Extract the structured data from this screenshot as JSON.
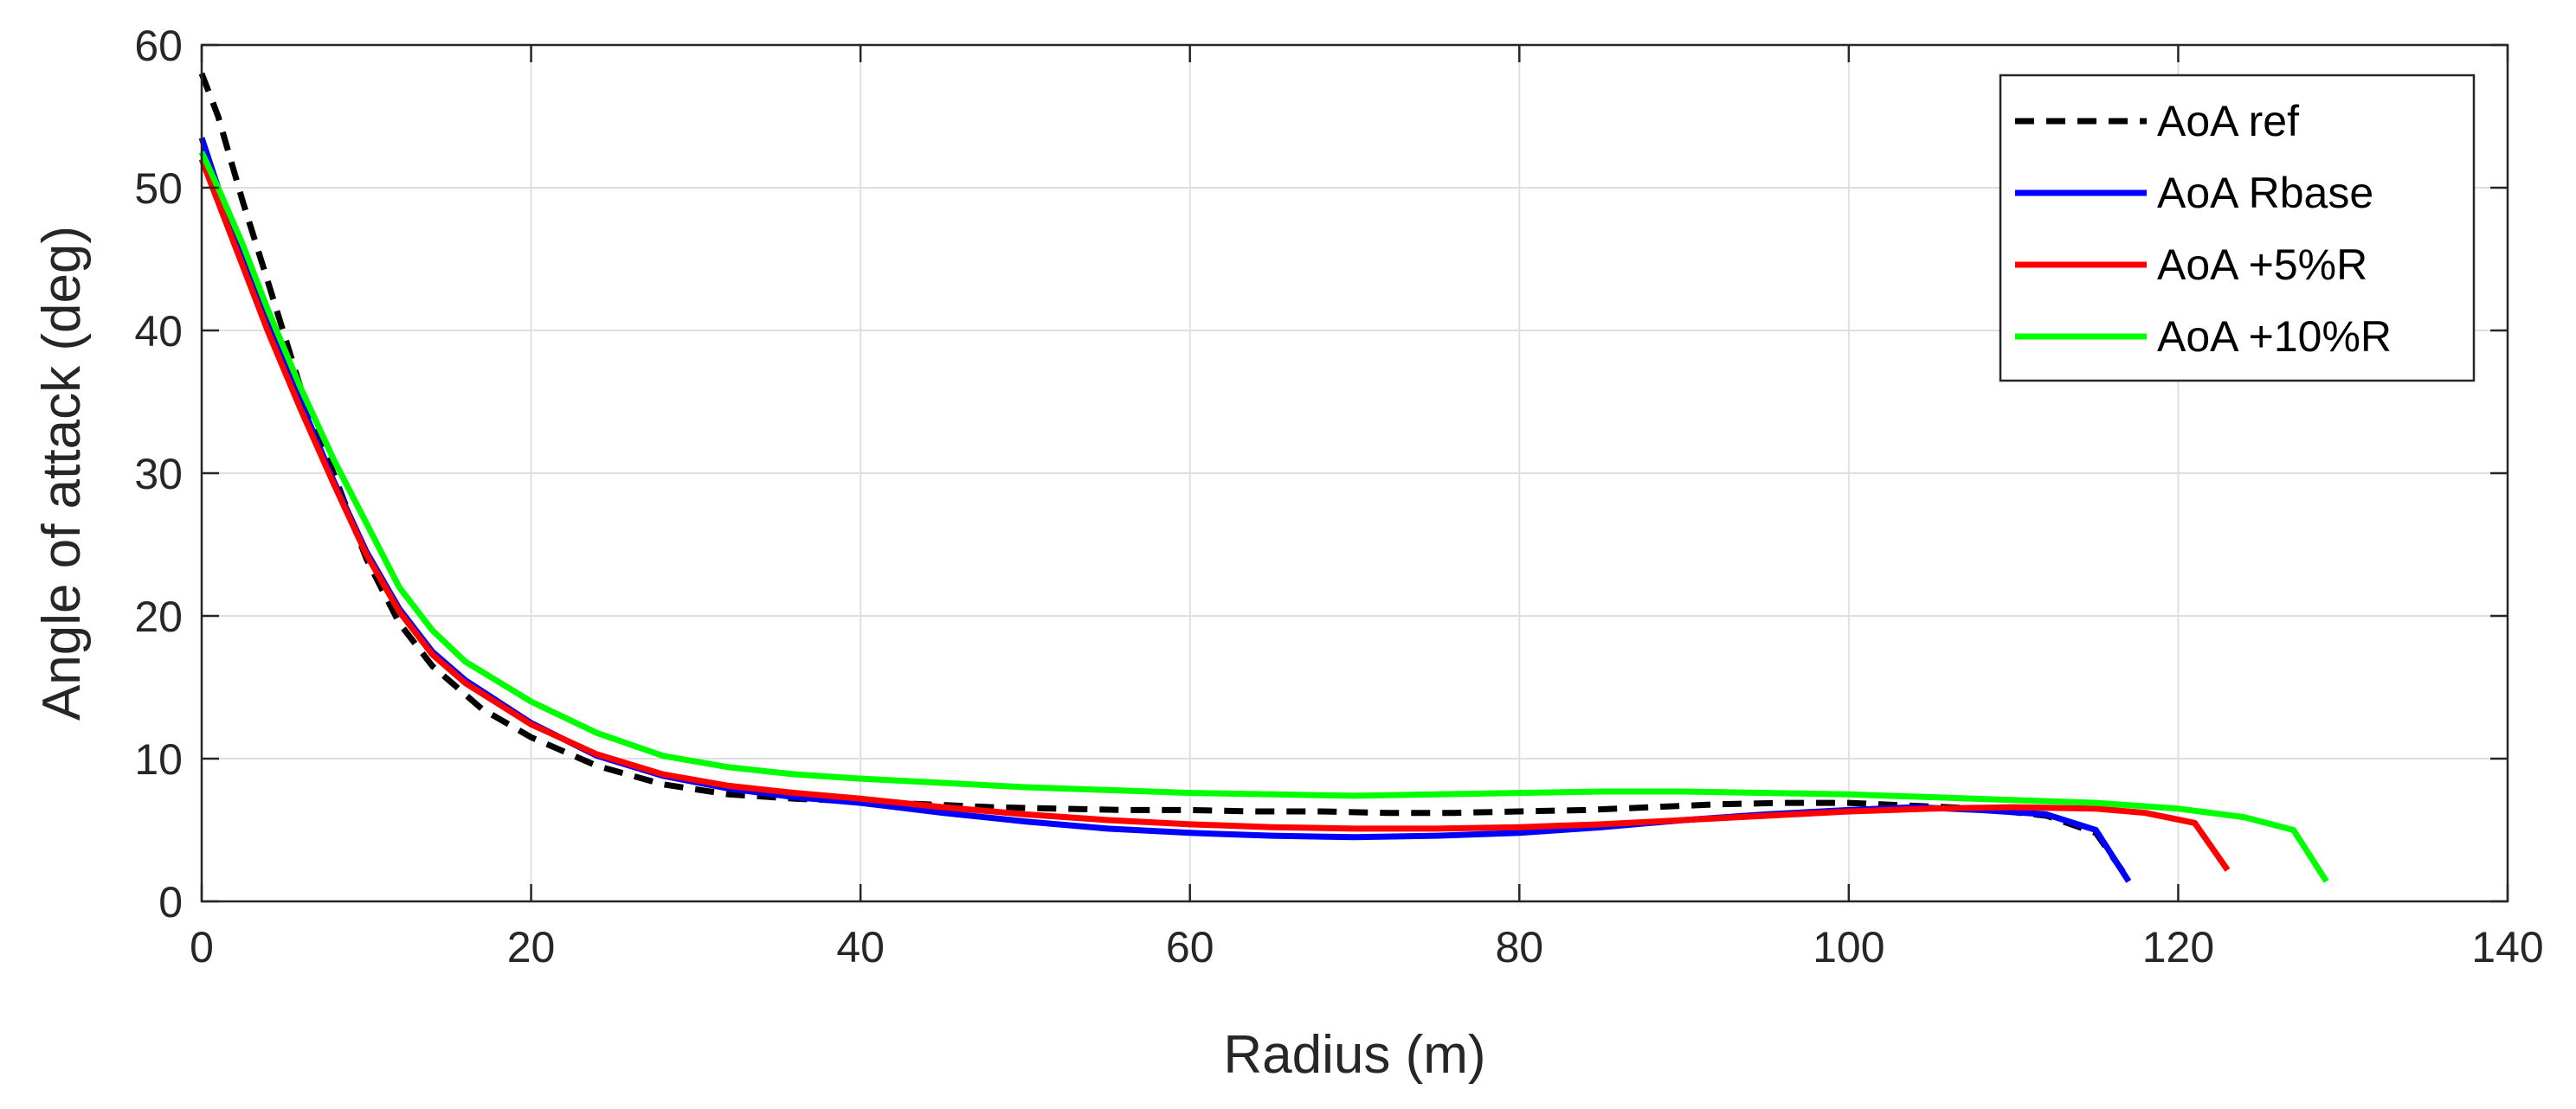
{
  "chart_data": {
    "type": "line",
    "title": "",
    "xlabel": "Radius (m)",
    "ylabel": "Angle of attack (deg)",
    "xlim": [
      0,
      140
    ],
    "ylim": [
      0,
      60
    ],
    "xticks": [
      0,
      20,
      40,
      60,
      80,
      100,
      120,
      140
    ],
    "yticks": [
      0,
      10,
      20,
      30,
      40,
      50,
      60
    ],
    "grid": true,
    "legend_position": "top-right",
    "series": [
      {
        "name": "AoA ref",
        "color": "#000000",
        "dash": "dashed",
        "x": [
          0,
          1,
          2.5,
          4,
          6,
          8,
          10,
          12,
          14,
          17,
          20,
          24,
          28,
          32,
          36,
          40,
          44,
          48,
          52,
          56,
          60,
          64,
          68,
          72,
          76,
          80,
          84,
          88,
          92,
          96,
          100,
          104,
          108,
          112,
          115,
          117
        ],
        "y": [
          58,
          55,
          49,
          43.5,
          36,
          30,
          24,
          19.5,
          16.5,
          13.5,
          11.5,
          9.5,
          8.2,
          7.5,
          7.2,
          7,
          6.8,
          6.6,
          6.5,
          6.4,
          6.4,
          6.3,
          6.3,
          6.2,
          6.2,
          6.3,
          6.4,
          6.6,
          6.8,
          6.9,
          6.9,
          6.7,
          6.5,
          6,
          4.8,
          1.5
        ]
      },
      {
        "name": "AoA Rbase",
        "color": "#0000ff",
        "dash": "solid",
        "x": [
          0,
          1,
          2.5,
          4,
          6,
          8,
          10,
          12,
          14,
          16,
          20,
          24,
          28,
          32,
          36,
          40,
          45,
          50,
          55,
          60,
          65,
          70,
          75,
          80,
          85,
          90,
          95,
          100,
          104,
          108,
          112,
          115,
          117
        ],
        "y": [
          53.5,
          50,
          45,
          40.5,
          35,
          29.5,
          24.5,
          20.5,
          17.5,
          15.5,
          12.5,
          10.2,
          8.8,
          7.9,
          7.3,
          6.9,
          6.2,
          5.6,
          5.1,
          4.8,
          4.6,
          4.5,
          4.6,
          4.8,
          5.2,
          5.7,
          6.1,
          6.4,
          6.6,
          6.4,
          6.1,
          5,
          1.4
        ]
      },
      {
        "name": "AoA +5%R",
        "color": "#ff0000",
        "dash": "solid",
        "x": [
          0,
          1,
          2.5,
          4,
          6,
          8,
          10,
          12,
          14,
          16,
          20,
          24,
          28,
          32,
          36,
          40,
          45,
          50,
          55,
          60,
          65,
          70,
          75,
          80,
          85,
          90,
          95,
          100,
          105,
          110,
          115,
          118,
          121,
          123
        ],
        "y": [
          52,
          49,
          44.5,
          40,
          34.5,
          29.3,
          24.3,
          20.3,
          17.3,
          15.3,
          12.4,
          10.3,
          8.9,
          8.1,
          7.6,
          7.2,
          6.6,
          6.1,
          5.7,
          5.4,
          5.2,
          5.1,
          5.1,
          5.2,
          5.4,
          5.7,
          6.0,
          6.3,
          6.5,
          6.6,
          6.5,
          6.2,
          5.5,
          2.2
        ]
      },
      {
        "name": "AoA +10%R",
        "color": "#00ff00",
        "dash": "solid",
        "x": [
          0,
          1,
          2.5,
          4,
          6,
          8,
          10,
          12,
          14,
          16,
          20,
          24,
          28,
          32,
          36,
          40,
          45,
          50,
          55,
          60,
          65,
          70,
          75,
          80,
          85,
          90,
          95,
          100,
          105,
          110,
          115,
          120,
          124,
          127,
          129
        ],
        "y": [
          52.5,
          50,
          46,
          41.5,
          36,
          31,
          26.5,
          22,
          19,
          16.8,
          14,
          11.8,
          10.2,
          9.4,
          8.9,
          8.6,
          8.3,
          8.0,
          7.8,
          7.6,
          7.5,
          7.4,
          7.5,
          7.6,
          7.7,
          7.7,
          7.6,
          7.5,
          7.3,
          7.1,
          6.9,
          6.5,
          5.9,
          5.0,
          1.4
        ]
      }
    ]
  }
}
